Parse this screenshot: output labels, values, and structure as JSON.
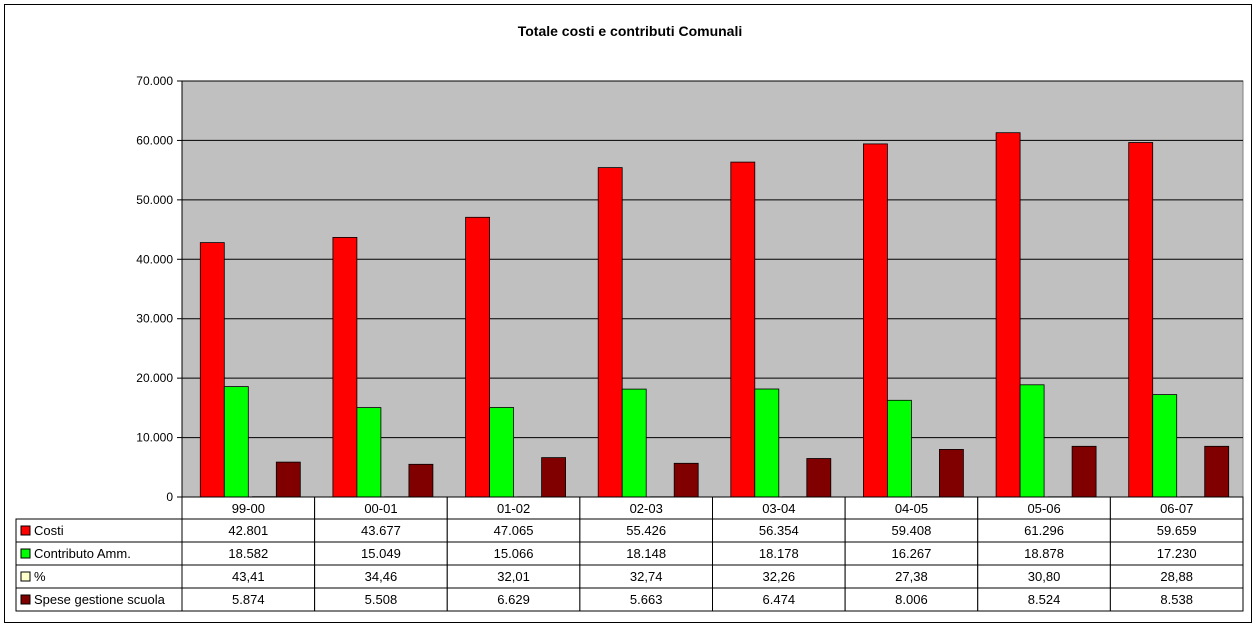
{
  "chart_data": {
    "type": "bar",
    "title": "Totale costi e contributi Comunali",
    "categories": [
      "99-00",
      "00-01",
      "01-02",
      "02-03",
      "03-04",
      "04-05",
      "05-06",
      "06-07"
    ],
    "ylim": [
      0,
      70000
    ],
    "y_ticks": [
      0,
      10000,
      20000,
      30000,
      40000,
      50000,
      60000,
      70000
    ],
    "y_tick_labels": [
      "0",
      "10.000",
      "20.000",
      "30.000",
      "40.000",
      "50.000",
      "60.000",
      "70.000"
    ],
    "grid": true,
    "legend": "data table below chart",
    "plot_background": "#C0C0C0",
    "series": [
      {
        "name": "Costi",
        "color": "#FF0000",
        "values": [
          42801,
          43677,
          47065,
          55426,
          56354,
          59408,
          61296,
          59659
        ],
        "labels": [
          "42.801",
          "43.677",
          "47.065",
          "55.426",
          "56.354",
          "59.408",
          "61.296",
          "59.659"
        ],
        "plotted": true
      },
      {
        "name": "Contributo Amm.",
        "color": "#00FF00",
        "values": [
          18582,
          15049,
          15066,
          18148,
          18178,
          16267,
          18878,
          17230
        ],
        "labels": [
          "18.582",
          "15.049",
          "15.066",
          "18.148",
          "18.178",
          "16.267",
          "18.878",
          "17.230"
        ],
        "plotted": true
      },
      {
        "name": "%",
        "color": "#FFFFCC",
        "values": [
          43.41,
          34.46,
          32.01,
          32.74,
          32.26,
          27.38,
          30.8,
          28.88
        ],
        "labels": [
          "43,41",
          "34,46",
          "32,01",
          "32,74",
          "32,26",
          "27,38",
          "30,80",
          "28,88"
        ],
        "plotted": true
      },
      {
        "name": "Spese gestione scuola",
        "color": "#800000",
        "values": [
          5874,
          5508,
          6629,
          5663,
          6474,
          8006,
          8524,
          8538
        ],
        "labels": [
          "5.874",
          "5.508",
          "6.629",
          "5.663",
          "6.474",
          "8.006",
          "8.524",
          "8.538"
        ],
        "plotted": true
      }
    ]
  }
}
